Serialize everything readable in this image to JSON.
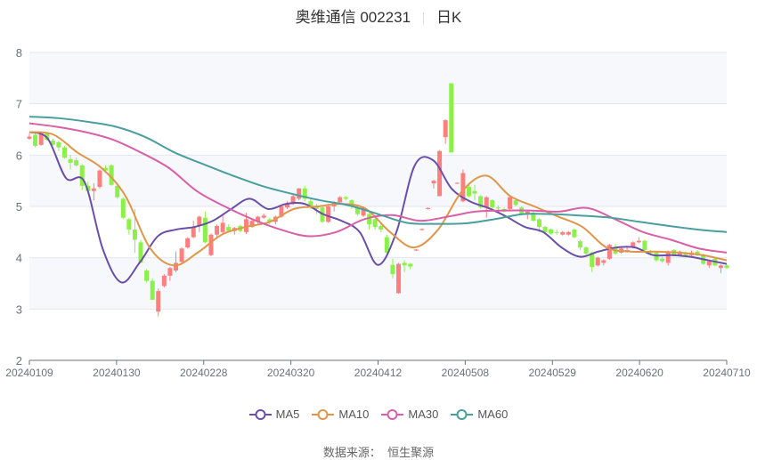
{
  "title": {
    "name": "奥维通信 002231",
    "period": "日K"
  },
  "source": {
    "label": "数据来源：",
    "value": "恒生聚源"
  },
  "chart_data": {
    "type": "candlestick",
    "ylim": [
      2,
      8
    ],
    "yticks": [
      "2",
      "3",
      "4",
      "5",
      "6",
      "7",
      "8"
    ],
    "xticks": [
      "20240109",
      "20240130",
      "20240228",
      "20240320",
      "20240412",
      "20240508",
      "20240529",
      "20240620",
      "20240710"
    ],
    "grid": true,
    "legend_position": "bottom",
    "colors": {
      "up": "#ff7f7f",
      "down": "#8cf04a",
      "MA5": "#6a4fa8",
      "MA10": "#e0964a",
      "MA30": "#d95fa8",
      "MA60": "#4a9e9e"
    },
    "ohlc_format": [
      "open",
      "close",
      "low",
      "high"
    ],
    "candles": [
      [
        6.32,
        6.36,
        6.3,
        6.42
      ],
      [
        6.4,
        6.18,
        6.15,
        6.44
      ],
      [
        6.2,
        6.42,
        6.18,
        6.45
      ],
      [
        6.42,
        6.3,
        6.28,
        6.45
      ],
      [
        6.28,
        6.2,
        6.18,
        6.32
      ],
      [
        6.25,
        6.15,
        6.08,
        6.28
      ],
      [
        6.15,
        5.95,
        5.93,
        6.18
      ],
      [
        5.92,
        5.85,
        5.72,
        6.0
      ],
      [
        5.9,
        5.8,
        5.78,
        5.95
      ],
      [
        5.8,
        5.4,
        5.32,
        5.82
      ],
      [
        5.4,
        5.3,
        5.25,
        5.48
      ],
      [
        5.3,
        5.35,
        5.12,
        5.45
      ],
      [
        5.38,
        5.7,
        5.35,
        5.72
      ],
      [
        5.75,
        5.7,
        5.65,
        5.8
      ],
      [
        5.8,
        5.42,
        5.4,
        5.82
      ],
      [
        5.4,
        5.18,
        5.15,
        5.42
      ],
      [
        5.15,
        4.78,
        4.75,
        5.18
      ],
      [
        4.75,
        4.55,
        4.45,
        4.78
      ],
      [
        4.55,
        4.35,
        4.1,
        4.95
      ],
      [
        4.3,
        3.9,
        3.9,
        4.35
      ],
      [
        3.75,
        3.55,
        3.52,
        3.78
      ],
      [
        3.55,
        3.18,
        3.18,
        3.6
      ],
      [
        2.95,
        3.35,
        2.86,
        3.4
      ],
      [
        3.45,
        3.65,
        3.42,
        3.68
      ],
      [
        3.65,
        3.8,
        3.55,
        3.82
      ],
      [
        3.75,
        3.9,
        3.72,
        4.12
      ],
      [
        3.92,
        4.18,
        3.9,
        4.2
      ],
      [
        4.2,
        4.38,
        4.18,
        4.4
      ],
      [
        4.4,
        4.6,
        4.38,
        4.72
      ],
      [
        4.62,
        4.8,
        4.5,
        4.82
      ],
      [
        4.78,
        4.3,
        4.28,
        4.9
      ],
      [
        4.05,
        4.45,
        4.03,
        4.47
      ],
      [
        4.45,
        4.62,
        4.4,
        4.65
      ],
      [
        4.5,
        4.68,
        4.45,
        4.82
      ],
      [
        4.6,
        4.52,
        4.5,
        4.65
      ],
      [
        4.52,
        4.58,
        4.45,
        4.6
      ],
      [
        4.62,
        4.52,
        4.5,
        4.65
      ],
      [
        4.5,
        4.75,
        4.46,
        4.88
      ],
      [
        4.6,
        4.72,
        4.58,
        4.74
      ],
      [
        4.7,
        4.8,
        4.66,
        4.82
      ],
      [
        4.78,
        4.82,
        4.76,
        4.86
      ],
      [
        4.75,
        4.7,
        4.65,
        4.78
      ],
      [
        4.7,
        4.8,
        4.65,
        4.82
      ],
      [
        4.8,
        5.0,
        4.78,
        5.02
      ],
      [
        4.98,
        5.05,
        4.95,
        5.1
      ],
      [
        5.05,
        5.2,
        5.03,
        5.22
      ],
      [
        5.15,
        5.35,
        5.12,
        5.36
      ],
      [
        5.35,
        5.15,
        5.1,
        5.4
      ],
      [
        5.1,
        4.98,
        4.95,
        5.15
      ],
      [
        4.98,
        4.95,
        4.85,
        5.05
      ],
      [
        4.98,
        4.7,
        4.68,
        5.0
      ],
      [
        4.7,
        5.0,
        4.68,
        5.05
      ],
      [
        5.0,
        5.08,
        4.9,
        5.1
      ],
      [
        5.08,
        5.18,
        5.05,
        5.2
      ],
      [
        5.18,
        5.15,
        5.12,
        5.2
      ],
      [
        5.12,
        5.0,
        4.95,
        5.14
      ],
      [
        4.98,
        4.85,
        4.82,
        5.0
      ],
      [
        4.82,
        4.98,
        4.8,
        5.0
      ],
      [
        4.85,
        4.65,
        4.55,
        4.88
      ],
      [
        4.75,
        4.6,
        4.55,
        4.78
      ],
      [
        4.62,
        4.55,
        4.5,
        4.65
      ],
      [
        4.4,
        4.1,
        4.08,
        4.45
      ],
      [
        3.86,
        3.68,
        3.6,
        3.98
      ],
      [
        3.31,
        3.88,
        3.3,
        3.9
      ],
      [
        3.9,
        3.85,
        3.72,
        3.95
      ],
      [
        3.88,
        3.83,
        3.78,
        3.9
      ],
      [
        4.14,
        4.16,
        4.13,
        4.17
      ],
      [
        4.54,
        4.56,
        4.53,
        4.57
      ],
      [
        4.95,
        4.97,
        4.94,
        4.98
      ],
      [
        5.45,
        5.5,
        5.35,
        5.52
      ],
      [
        5.2,
        6.08,
        5.2,
        6.1
      ],
      [
        6.35,
        6.68,
        6.22,
        6.7
      ],
      [
        7.4,
        6.05,
        6.05,
        7.4
      ],
      [
        5.45,
        5.46,
        5.44,
        5.47
      ],
      [
        5.1,
        5.65,
        5.08,
        5.72
      ],
      [
        5.38,
        5.2,
        5.18,
        5.42
      ],
      [
        5.3,
        5.25,
        5.12,
        5.42
      ],
      [
        5.2,
        4.98,
        4.96,
        5.22
      ],
      [
        4.98,
        5.18,
        4.78,
        5.2
      ],
      [
        5.12,
        4.98,
        4.95,
        5.14
      ],
      [
        4.98,
        4.96,
        4.9,
        5.02
      ],
      [
        4.95,
        4.9,
        4.88,
        4.98
      ],
      [
        4.95,
        5.18,
        4.93,
        5.2
      ],
      [
        5.12,
        5.03,
        5.0,
        5.14
      ],
      [
        4.98,
        4.85,
        4.82,
        5.0
      ],
      [
        4.85,
        4.9,
        4.75,
        4.92
      ],
      [
        4.88,
        4.72,
        4.7,
        4.9
      ],
      [
        4.75,
        4.6,
        4.5,
        4.77
      ],
      [
        4.6,
        4.5,
        4.47,
        4.62
      ],
      [
        4.55,
        4.47,
        4.45,
        4.57
      ],
      [
        4.5,
        4.49,
        4.45,
        4.55
      ],
      [
        4.45,
        4.5,
        4.43,
        4.52
      ],
      [
        4.45,
        4.5,
        4.43,
        4.52
      ],
      [
        4.55,
        4.4,
        4.38,
        4.57
      ],
      [
        4.32,
        4.2,
        4.15,
        4.35
      ],
      [
        4.2,
        4.08,
        4.05,
        4.22
      ],
      [
        4.1,
        3.82,
        3.72,
        4.12
      ],
      [
        3.85,
        4.0,
        3.83,
        4.02
      ],
      [
        3.9,
        3.95,
        3.85,
        3.97
      ],
      [
        3.98,
        4.25,
        3.96,
        4.27
      ],
      [
        4.2,
        4.08,
        4.06,
        4.27
      ],
      [
        4.1,
        4.18,
        4.08,
        4.2
      ],
      [
        4.12,
        4.15,
        4.1,
        4.2
      ],
      [
        4.2,
        4.3,
        4.18,
        4.32
      ],
      [
        4.3,
        4.33,
        4.28,
        4.4
      ],
      [
        4.33,
        4.15,
        4.13,
        4.35
      ],
      [
        4.11,
        4.1,
        4.05,
        4.15
      ],
      [
        4.1,
        3.95,
        3.92,
        4.12
      ],
      [
        3.98,
        3.93,
        3.9,
        4.02
      ],
      [
        3.9,
        4.12,
        3.85,
        4.14
      ],
      [
        4.15,
        4.05,
        4.03,
        4.17
      ],
      [
        4.05,
        4.12,
        4.03,
        4.14
      ],
      [
        4.1,
        4.05,
        4.0,
        4.12
      ],
      [
        4.05,
        4.1,
        4.03,
        4.14
      ],
      [
        4.12,
        4.05,
        4.03,
        4.15
      ],
      [
        4.05,
        3.88,
        3.86,
        4.08
      ],
      [
        3.85,
        3.93,
        3.8,
        3.95
      ],
      [
        3.98,
        3.85,
        3.83,
        4.0
      ],
      [
        3.8,
        3.85,
        3.7,
        3.87
      ],
      [
        3.85,
        3.8,
        3.78,
        3.87
      ]
    ],
    "series": [
      {
        "name": "MA5",
        "values": [
          6.45,
          6.32,
          5.55,
          5.48,
          4.17,
          3.52,
          3.9,
          4.42,
          4.55,
          4.6,
          4.72,
          4.95,
          5.15,
          4.95,
          5.05,
          5.05,
          4.85,
          4.72,
          4.5,
          3.86,
          4.5,
          5.8,
          5.9,
          5.35,
          5.1,
          4.97,
          4.8,
          4.6,
          4.5,
          4.2,
          4.02,
          4.12,
          4.2,
          4.2,
          4.05,
          4.05,
          4.02,
          3.95,
          3.88
        ]
      },
      {
        "name": "MA10",
        "values": [
          6.45,
          6.4,
          6.05,
          5.75,
          5.2,
          4.2,
          3.85,
          4.1,
          4.45,
          4.6,
          4.7,
          4.95,
          5.0,
          5.05,
          4.95,
          4.5,
          4.2,
          4.55,
          5.3,
          5.6,
          5.2,
          5.0,
          4.8,
          4.6,
          4.2,
          4.12,
          4.12,
          4.1,
          4.05,
          3.95
        ]
      },
      {
        "name": "MA30",
        "values": [
          6.62,
          6.55,
          6.45,
          6.3,
          6.05,
          5.75,
          5.3,
          5.0,
          4.75,
          4.55,
          4.42,
          4.5,
          4.75,
          4.83,
          4.72,
          4.8,
          4.9,
          4.92,
          4.92,
          4.9,
          4.97,
          4.75,
          4.5,
          4.35,
          4.18,
          4.1
        ]
      },
      {
        "name": "MA60",
        "values": [
          6.75,
          6.72,
          6.65,
          6.55,
          6.35,
          6.05,
          5.82,
          5.6,
          5.4,
          5.25,
          5.12,
          5.02,
          4.85,
          4.68,
          4.66,
          4.67,
          4.75,
          4.85,
          4.85,
          4.82,
          4.78,
          4.7,
          4.62,
          4.55,
          4.5
        ]
      }
    ]
  }
}
